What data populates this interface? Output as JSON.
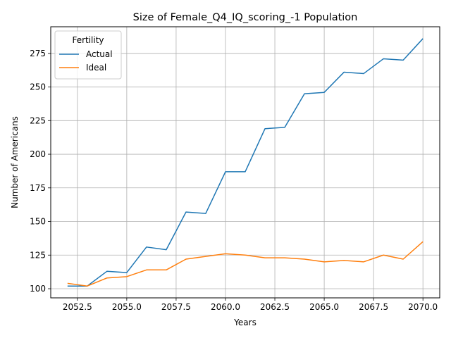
{
  "chart_data": {
    "type": "line",
    "title": "Size of Female_Q4_IQ_scoring_-1 Population",
    "xlabel": "Years",
    "ylabel": "Number of Americans",
    "xlim": [
      2051.15,
      2070.85
    ],
    "ylim": [
      93.2,
      294.8
    ],
    "xticks": [
      2052.5,
      2055.0,
      2057.5,
      2060.0,
      2062.5,
      2065.0,
      2067.5,
      2070.0
    ],
    "xtick_labels": [
      "2052.5",
      "2055.0",
      "2057.5",
      "2060.0",
      "2062.5",
      "2065.0",
      "2067.5",
      "2070.0"
    ],
    "yticks": [
      100,
      125,
      150,
      175,
      200,
      225,
      250,
      275
    ],
    "ytick_labels": [
      "100",
      "125",
      "150",
      "175",
      "200",
      "225",
      "250",
      "275"
    ],
    "grid": true,
    "legend": {
      "title": "Fertility",
      "position": "top-left"
    },
    "x": [
      2052,
      2053,
      2054,
      2055,
      2056,
      2057,
      2058,
      2059,
      2060,
      2061,
      2062,
      2063,
      2064,
      2065,
      2066,
      2067,
      2068,
      2069,
      2070
    ],
    "series": [
      {
        "name": "Actual",
        "color": "#1f77b4",
        "values": [
          102,
          102,
          113,
          112,
          131,
          129,
          157,
          156,
          187,
          187,
          219,
          220,
          245,
          246,
          261,
          260,
          271,
          270,
          286
        ]
      },
      {
        "name": "Ideal",
        "color": "#ff7f0e",
        "values": [
          104,
          102,
          108,
          109,
          114,
          114,
          122,
          124,
          126,
          125,
          123,
          123,
          122,
          120,
          121,
          120,
          125,
          122,
          135
        ]
      }
    ]
  }
}
